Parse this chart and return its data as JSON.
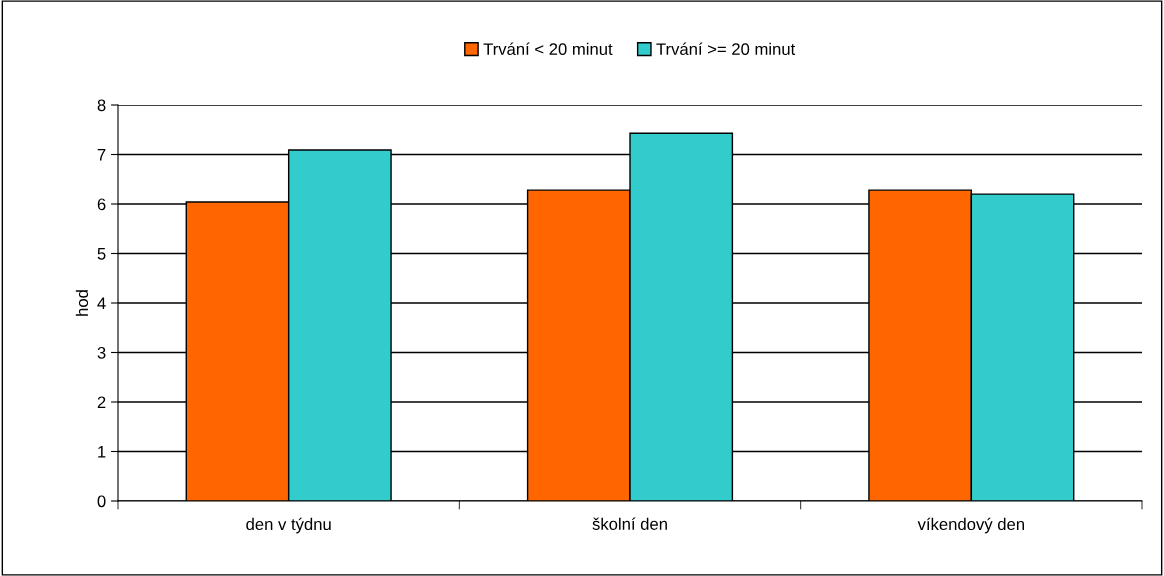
{
  "chart_data": {
    "type": "bar",
    "ylabel": "hod",
    "categories": [
      "den v týdnu",
      "školní den",
      "víkendový den"
    ],
    "series": [
      {
        "name": "Trvání < 20 minut",
        "color": "#ff6600",
        "values": [
          6.04,
          6.28,
          6.28
        ]
      },
      {
        "name": "Trvání >= 20 minut",
        "color": "#33cccc",
        "values": [
          7.09,
          7.43,
          6.2
        ]
      }
    ],
    "ylim": [
      0,
      8
    ],
    "yticks": [
      0,
      1,
      2,
      3,
      4,
      5,
      6,
      7,
      8
    ],
    "grid": "y",
    "legend": "top"
  }
}
